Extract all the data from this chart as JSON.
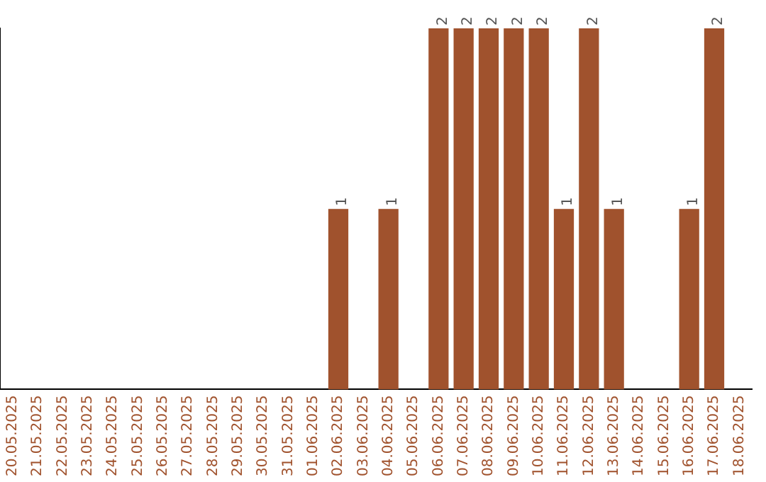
{
  "chart_data": {
    "type": "bar",
    "categories": [
      "20.05.2025",
      "21.05.2025",
      "22.05.2025",
      "23.05.2025",
      "24.05.2025",
      "25.05.2025",
      "26.05.2025",
      "27.05.2025",
      "28.05.2025",
      "29.05.2025",
      "30.05.2025",
      "31.05.2025",
      "01.06.2025",
      "02.06.2025",
      "03.06.2025",
      "04.06.2025",
      "05.06.2025",
      "06.06.2025",
      "07.06.2025",
      "08.06.2025",
      "09.06.2025",
      "10.06.2025",
      "11.06.2025",
      "12.06.2025",
      "13.06.2025",
      "14.06.2025",
      "15.06.2025",
      "16.06.2025",
      "17.06.2025",
      "18.06.2025"
    ],
    "values": [
      null,
      null,
      null,
      null,
      null,
      null,
      null,
      null,
      null,
      null,
      null,
      null,
      null,
      1,
      null,
      1,
      null,
      2,
      2,
      2,
      2,
      2,
      1,
      2,
      1,
      null,
      null,
      1,
      2,
      null
    ],
    "value_labels": [
      null,
      null,
      null,
      null,
      null,
      null,
      null,
      null,
      null,
      null,
      null,
      null,
      null,
      "1",
      null,
      "1",
      null,
      "2",
      "2",
      "2",
      "2",
      "2",
      "1",
      "2",
      "1",
      null,
      null,
      "1",
      "2",
      null
    ],
    "color": "#a0522d",
    "grid": false,
    "legend": false,
    "tick_labels": "x"
  }
}
